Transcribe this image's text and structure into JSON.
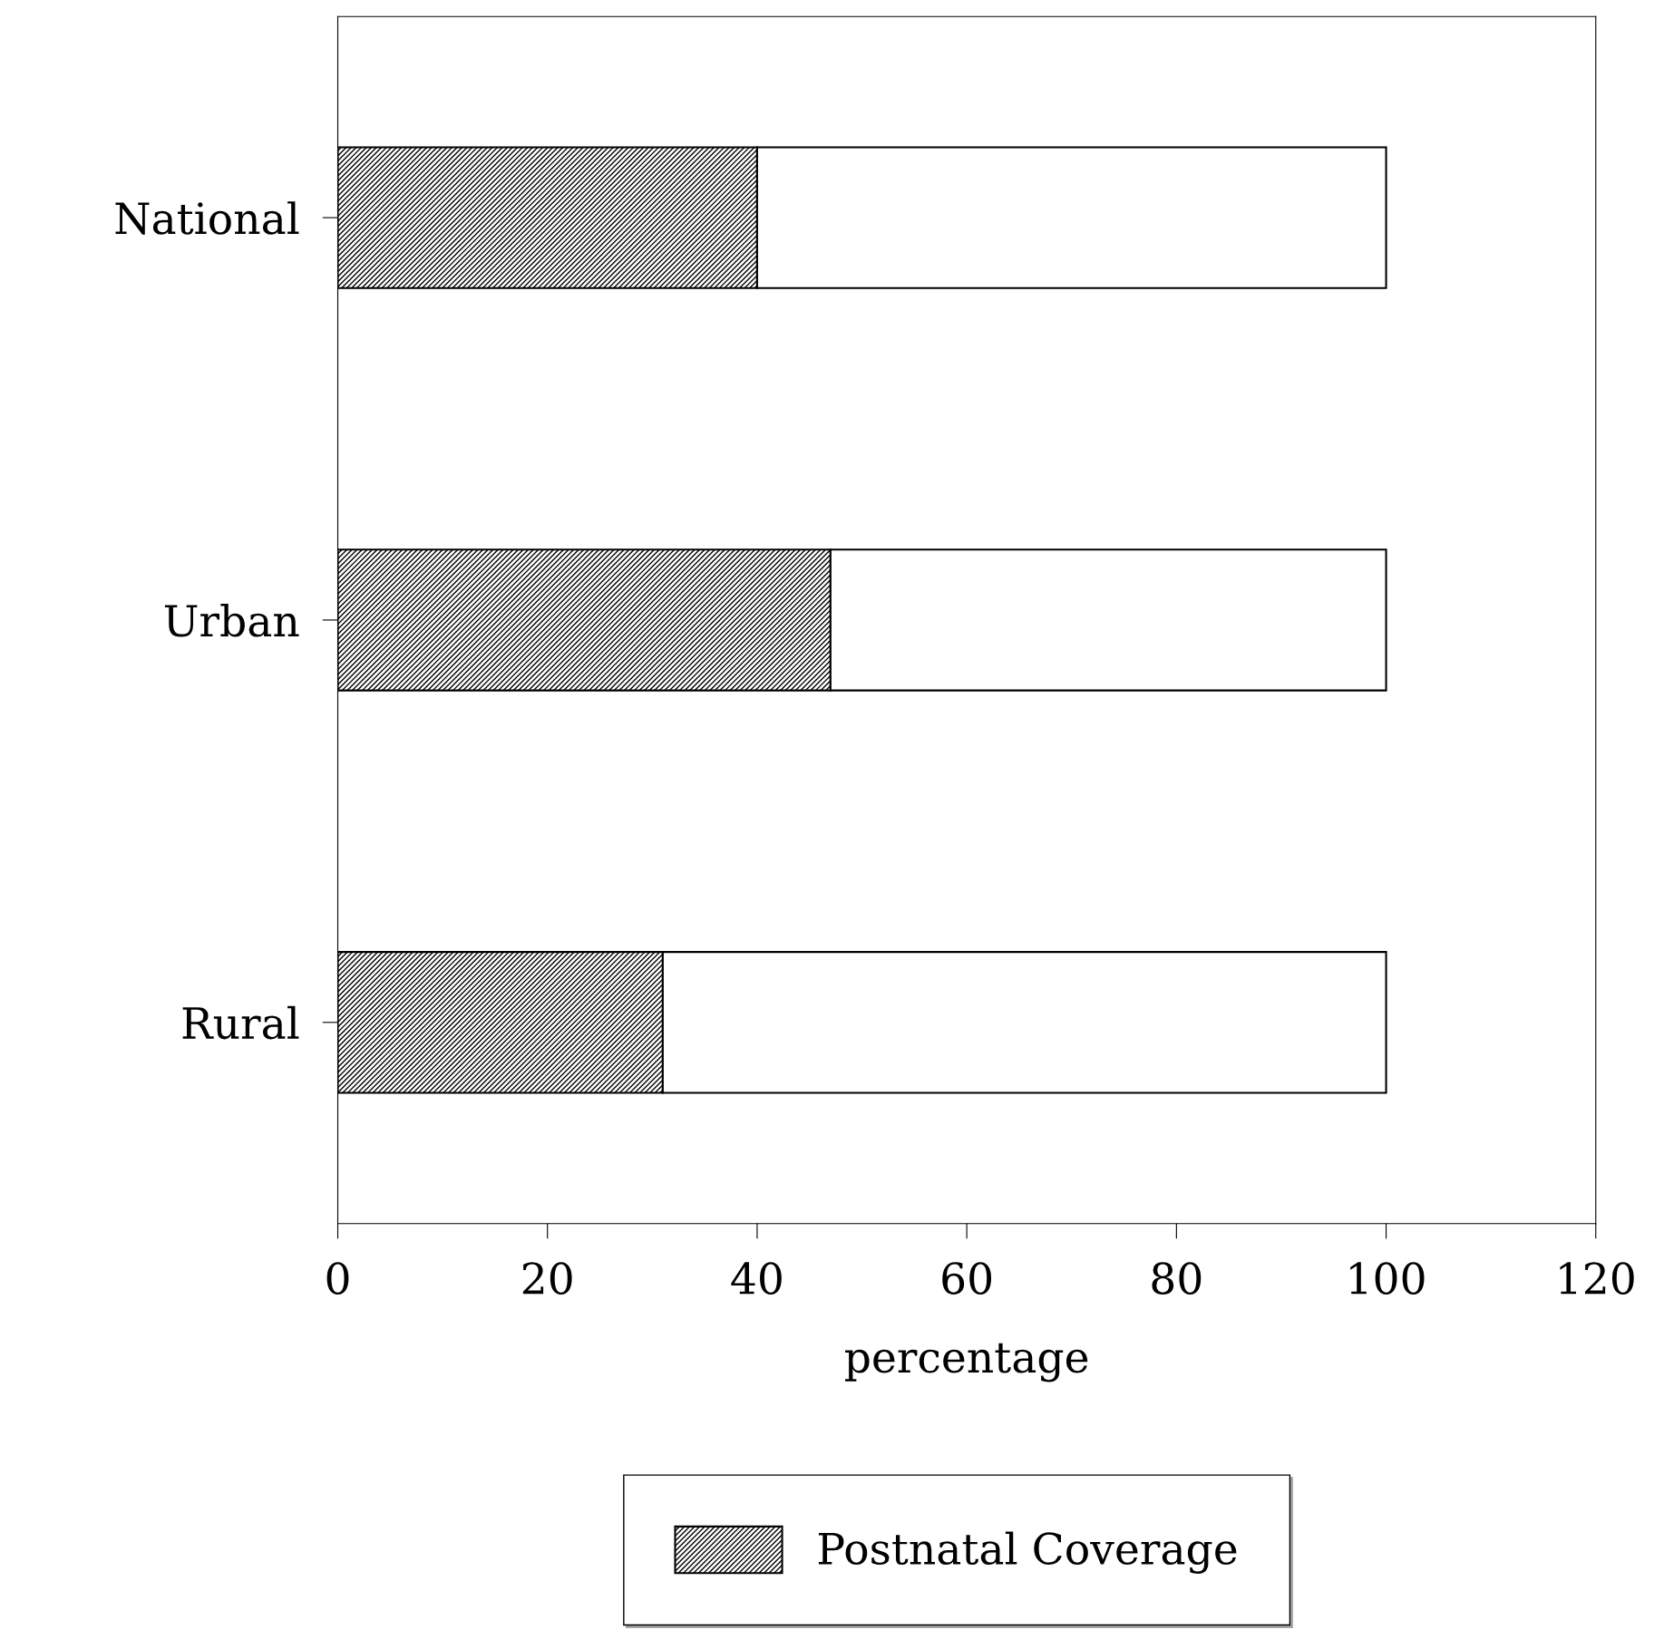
{
  "chart_data": {
    "type": "bar",
    "orientation": "horizontal",
    "stacked": true,
    "xlabel": "percentage",
    "categories": [
      "National",
      "Urban",
      "Rural"
    ],
    "series": [
      {
        "name": "Postnatal Coverage",
        "color": "#000000",
        "values": [
          40,
          47,
          31
        ]
      },
      {
        "color": "#ffffff",
        "values": [
          60,
          53,
          69
        ]
      }
    ],
    "xlim": [
      0,
      120
    ],
    "xticks": [
      0,
      20,
      40,
      60,
      80,
      100,
      120
    ],
    "grid": false,
    "legend": "bottom"
  }
}
